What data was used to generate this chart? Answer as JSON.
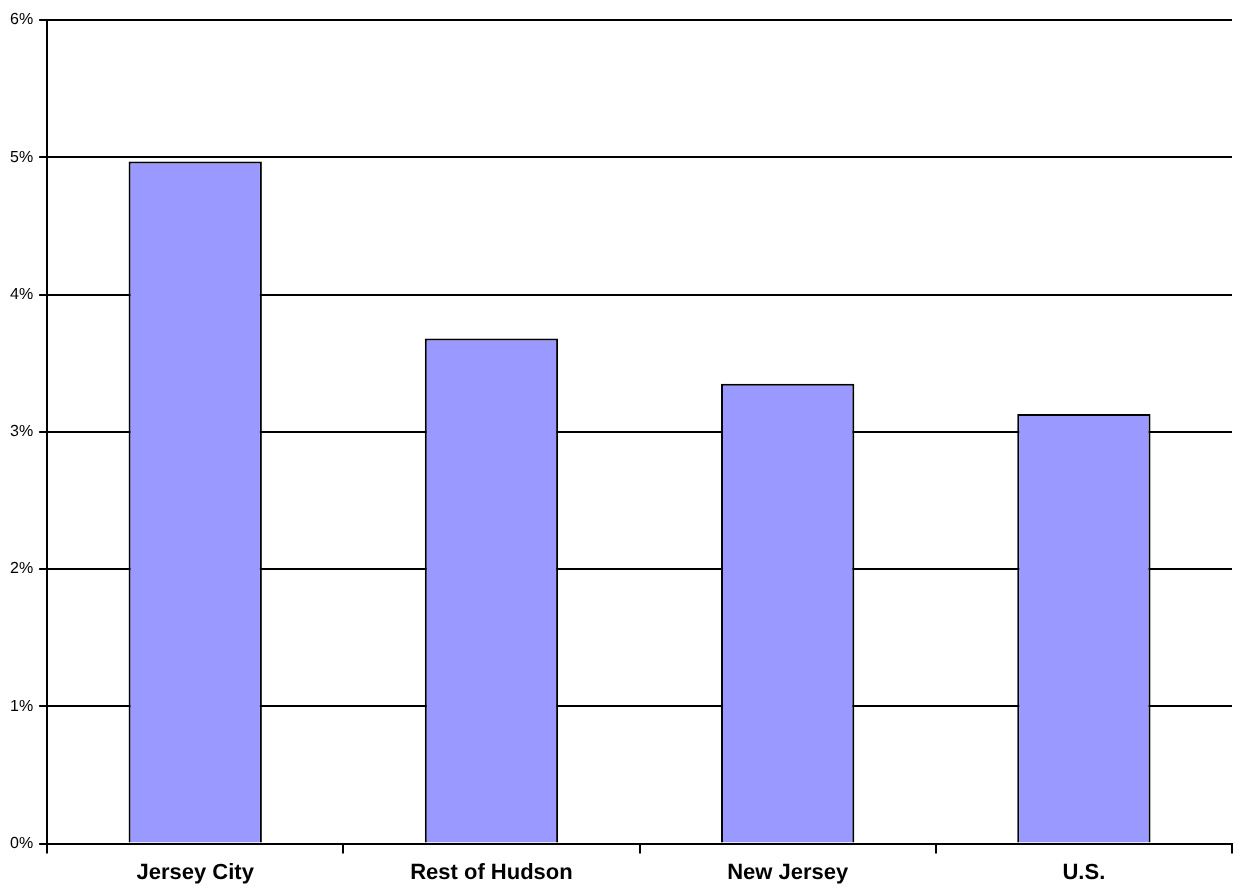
{
  "chart_data": {
    "type": "bar",
    "categories": [
      "Jersey City",
      "Rest of Hudson",
      "New Jersey",
      "U.S."
    ],
    "values": [
      4.97,
      3.68,
      3.35,
      3.13
    ],
    "color": "#9999ff",
    "ylim": [
      0,
      6
    ],
    "yticks": [
      {
        "value": 0,
        "label": "0%"
      },
      {
        "value": 1,
        "label": "1%"
      },
      {
        "value": 2,
        "label": "2%"
      },
      {
        "value": 3,
        "label": "3%"
      },
      {
        "value": 4,
        "label": "4%"
      },
      {
        "value": 5,
        "label": "5%"
      },
      {
        "value": 6,
        "label": "6%"
      }
    ],
    "grid": "y",
    "legend": false
  }
}
